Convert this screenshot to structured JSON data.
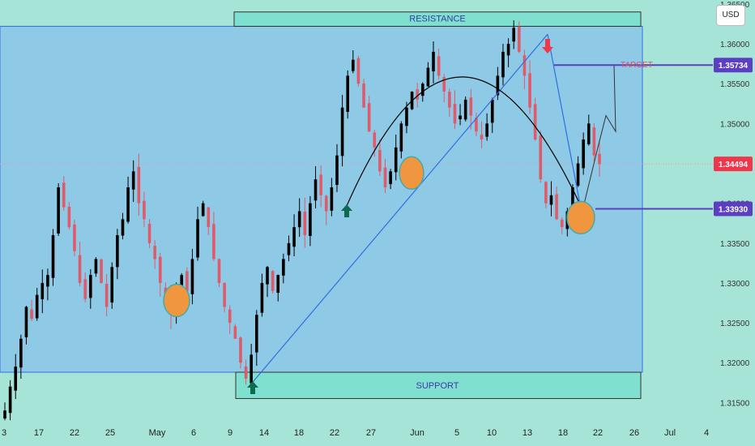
{
  "currency_button": "USD",
  "labels": {
    "resistance": "RESISTANCE",
    "support": "SUPPORT",
    "target": "TARGET"
  },
  "colors": {
    "background": "#a6e4d7",
    "range_fill": "#8ec9e6",
    "zone_fill": "#7fe0cf",
    "bull": "#000000",
    "bear": "#e05a6a",
    "trendline": "#2f6fe0",
    "price_line": "#e89aa0",
    "level_line": "#5b3fc0",
    "circle": "#f0963e",
    "arrow_up": "#0d6b4f",
    "arrow_down": "#f0364a",
    "target_text": "#e0505e"
  },
  "chart_data": {
    "type": "candlestick",
    "symbol_currency": "USD",
    "y_ticks": [
      "1.31500",
      "1.32000",
      "1.32500",
      "1.33000",
      "1.33500",
      "1.34000",
      "1.34500",
      "1.35000",
      "1.35500",
      "1.36000",
      "1.36500"
    ],
    "y_ticks_values": [
      1.315,
      1.32,
      1.325,
      1.33,
      1.335,
      1.34,
      1.345,
      1.35,
      1.355,
      1.36,
      1.365
    ],
    "x_ticks": [
      "3",
      "17",
      "22",
      "25",
      "May",
      "6",
      "9",
      "14",
      "18",
      "22",
      "27",
      "Jun",
      "5",
      "10",
      "13",
      "18",
      "22",
      "26",
      "Jul",
      "4"
    ],
    "ylim": [
      1.3128,
      1.3655
    ],
    "resistance_zone": [
      1.3622,
      1.364
    ],
    "support_zone": [
      1.3155,
      1.3188
    ],
    "range_box": [
      1.3188,
      1.3622
    ],
    "price_levels": [
      {
        "label": "1.35734",
        "value": 1.35734,
        "kind": "target"
      },
      {
        "label": "1.34494",
        "value": 1.34494,
        "kind": "current"
      },
      {
        "label": "1.33930",
        "value": 1.3393,
        "kind": "support"
      }
    ],
    "close_path": [
      1.314,
      1.317,
      1.3195,
      1.323,
      1.327,
      1.3255,
      1.3285,
      1.33,
      1.331,
      1.336,
      1.342,
      1.3395,
      1.337,
      1.334,
      1.33,
      1.328,
      1.331,
      1.333,
      1.33,
      1.327,
      1.332,
      1.336,
      1.338,
      1.342,
      1.344,
      1.34,
      1.338,
      1.335,
      1.333,
      1.33,
      1.328,
      1.326,
      1.3285,
      1.331,
      1.329,
      1.333,
      1.338,
      1.34,
      1.337,
      1.333,
      1.33,
      1.327,
      1.325,
      1.323,
      1.32,
      1.318,
      1.321,
      1.326,
      1.33,
      1.332,
      1.329,
      1.331,
      1.333,
      1.335,
      1.337,
      1.339,
      1.336,
      1.34,
      1.343,
      1.341,
      1.339,
      1.342,
      1.346,
      1.352,
      1.356,
      1.358,
      1.355,
      1.352,
      1.349,
      1.347,
      1.344,
      1.342,
      1.344,
      1.347,
      1.35,
      1.352,
      1.354,
      1.353,
      1.355,
      1.357,
      1.359,
      1.356,
      1.354,
      1.352,
      1.35,
      1.351,
      1.353,
      1.351,
      1.349,
      1.348,
      1.35,
      1.353,
      1.356,
      1.359,
      1.36,
      1.362,
      1.359,
      1.356,
      1.352,
      1.348,
      1.343,
      1.34,
      1.341,
      1.338,
      1.337,
      1.339,
      1.342,
      1.345,
      1.348,
      1.35,
      1.346,
      1.3449
    ],
    "projection": [
      1.3449,
      1.347,
      1.351,
      1.349,
      1.35734
    ],
    "annotations": [
      "RESISTANCE",
      "SUPPORT",
      "TARGET"
    ]
  }
}
